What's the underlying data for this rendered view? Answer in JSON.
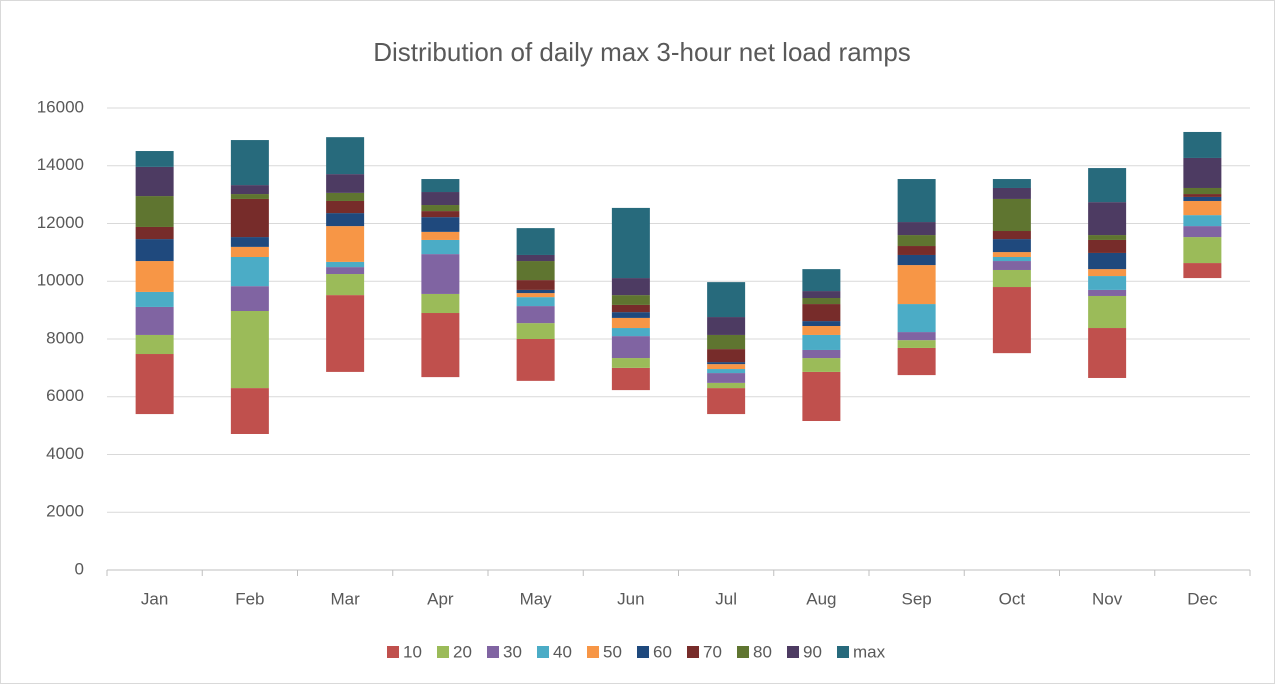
{
  "chart_data": {
    "type": "bar",
    "stacked": true,
    "title": "Distribution of daily max 3-hour net load ramps",
    "categories": [
      "Jan",
      "Feb",
      "Mar",
      "Apr",
      "May",
      "Jun",
      "Jul",
      "Aug",
      "Sep",
      "Oct",
      "Nov",
      "Dec"
    ],
    "base": [
      5400,
      4710,
      6860,
      6680,
      6550,
      6230,
      5400,
      5160,
      6750,
      7510,
      6650,
      10110
    ],
    "series": [
      {
        "name": "10",
        "color": "#c0504d",
        "values": [
          2080,
          1590,
          2660,
          2220,
          1450,
          770,
          900,
          1700,
          940,
          2290,
          1730,
          520
        ]
      },
      {
        "name": "20",
        "color": "#9bbb59",
        "values": [
          660,
          2670,
          730,
          660,
          550,
          340,
          180,
          480,
          270,
          590,
          1110,
          900
        ]
      },
      {
        "name": "30",
        "color": "#8064a2",
        "values": [
          970,
          860,
          240,
          1380,
          590,
          760,
          340,
          280,
          280,
          310,
          210,
          380
        ]
      },
      {
        "name": "40",
        "color": "#4bacc6",
        "values": [
          520,
          1010,
          180,
          490,
          310,
          280,
          140,
          520,
          970,
          140,
          480,
          380
        ]
      },
      {
        "name": "50",
        "color": "#f79646",
        "values": [
          1070,
          350,
          1240,
          280,
          140,
          350,
          170,
          310,
          1350,
          170,
          240,
          490
        ]
      },
      {
        "name": "60",
        "color": "#1f497d",
        "values": [
          760,
          340,
          450,
          510,
          110,
          200,
          70,
          170,
          350,
          450,
          560,
          140
        ]
      },
      {
        "name": "70",
        "color": "#772c2a",
        "values": [
          420,
          1320,
          420,
          210,
          340,
          250,
          450,
          590,
          310,
          280,
          450,
          100
        ]
      },
      {
        "name": "80",
        "color": "#5f7530",
        "values": [
          1070,
          170,
          280,
          210,
          660,
          340,
          490,
          210,
          380,
          1110,
          170,
          210
        ]
      },
      {
        "name": "90",
        "color": "#4d3b62",
        "values": [
          1010,
          310,
          650,
          450,
          210,
          590,
          620,
          240,
          450,
          380,
          1140,
          1040
        ]
      },
      {
        "name": "max",
        "color": "#276a7c",
        "values": [
          550,
          1560,
          1280,
          450,
          930,
          2430,
          1210,
          760,
          1490,
          310,
          1180,
          900
        ]
      }
    ],
    "ylim": [
      0,
      16000
    ],
    "yticks": [
      0,
      2000,
      4000,
      6000,
      8000,
      10000,
      12000,
      14000,
      16000
    ],
    "grid": true,
    "legend": "bottom"
  }
}
